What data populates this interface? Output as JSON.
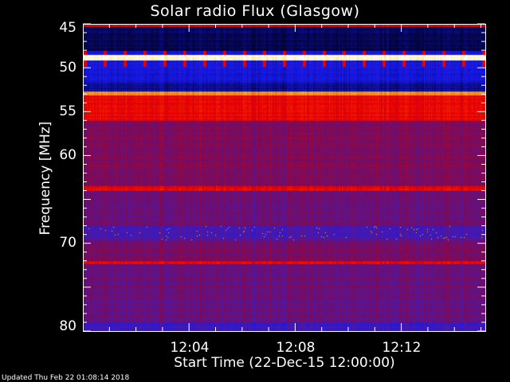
{
  "chart_data": {
    "type": "heatmap",
    "title": "Solar radio Flux (Glasgow)",
    "xlabel": "Start Time (22-Dec-15 12:00:00)",
    "ylabel": "Frequency [MHz]",
    "xlim": [
      "12:00:00",
      "12:15:12"
    ],
    "ylim": [
      45,
      80
    ],
    "y_inverted": true,
    "x_ticks": [
      "12:04",
      "12:08",
      "12:12"
    ],
    "y_ticks": [
      "45",
      "50",
      "55",
      "60",
      "70",
      "80"
    ],
    "colormap": "black-blue-red-yellow-white",
    "bands": [
      {
        "f": [
          45.0,
          45.3
        ],
        "level": 0.6
      },
      {
        "f": [
          45.3,
          48.0
        ],
        "level": 0.14
      },
      {
        "f": [
          48.0,
          48.5
        ],
        "level": 0.27,
        "spikes": 0.6
      },
      {
        "f": [
          48.5,
          49.1
        ],
        "level": 0.97
      },
      {
        "f": [
          49.1,
          49.8
        ],
        "level": 0.27,
        "spikes": 0.6
      },
      {
        "f": [
          49.8,
          51.6
        ],
        "level": 0.26
      },
      {
        "f": [
          51.6,
          52.6
        ],
        "level": 0.2
      },
      {
        "f": [
          52.6,
          53.1
        ],
        "level": 0.8
      },
      {
        "f": [
          53.1,
          56.0
        ],
        "level": 0.6
      },
      {
        "f": [
          56.0,
          63.5
        ],
        "level": 0.45
      },
      {
        "f": [
          63.5,
          64.0
        ],
        "level": 0.6
      },
      {
        "f": [
          64.0,
          68.0
        ],
        "level": 0.42
      },
      {
        "f": [
          68.0,
          69.6
        ],
        "level": 0.36,
        "bursts": 0.85
      },
      {
        "f": [
          69.6,
          72.0
        ],
        "level": 0.43
      },
      {
        "f": [
          72.0,
          72.4
        ],
        "level": 0.6
      },
      {
        "f": [
          72.4,
          79.0
        ],
        "level": 0.41
      },
      {
        "f": [
          79.0,
          80.0
        ],
        "level": 0.33
      }
    ]
  },
  "footer": {
    "updated": "Updated Thu Feb 22 01:08:14 2018"
  }
}
